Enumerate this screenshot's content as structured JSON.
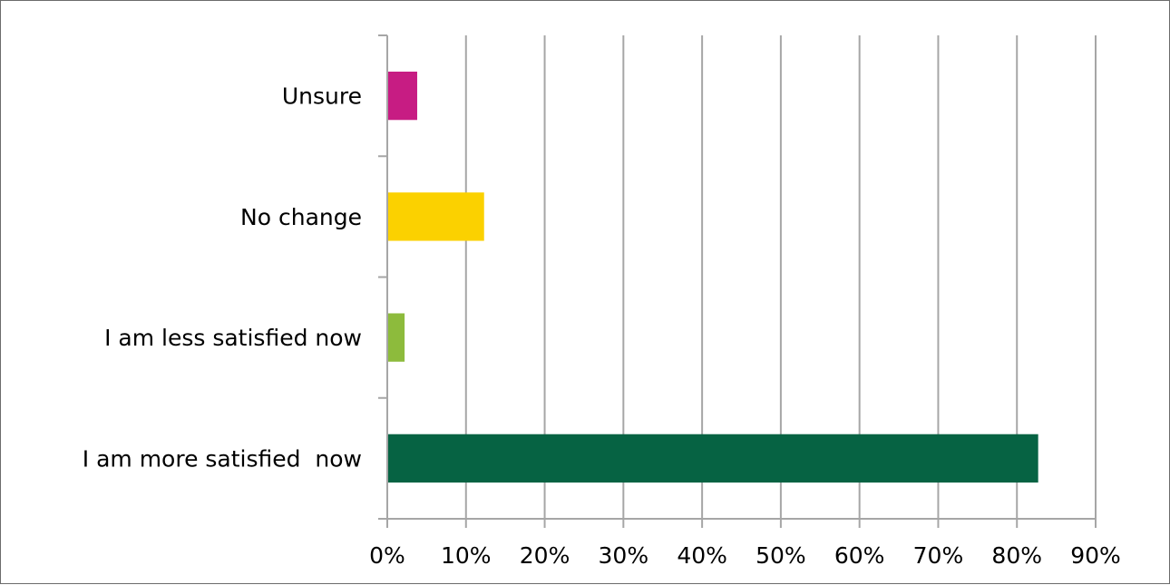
{
  "chart_data": {
    "type": "bar",
    "orientation": "horizontal",
    "categories": [
      "Unsure",
      "No change",
      "I am less satisfied now",
      "I am more satisfied  now"
    ],
    "values": [
      3.8,
      12.3,
      2.2,
      82.7
    ],
    "colors": [
      "#c71c83",
      "#fbd100",
      "#8dbb3c",
      "#066343"
    ],
    "xlim": [
      0,
      90
    ],
    "x_ticks": [
      0,
      10,
      20,
      30,
      40,
      50,
      60,
      70,
      80,
      90
    ],
    "x_tick_labels": [
      "0%",
      "10%",
      "20%",
      "30%",
      "40%",
      "50%",
      "60%",
      "70%",
      "80%",
      "90%"
    ],
    "grid": "vertical",
    "gridline_color": "#a6a6a6",
    "title": "",
    "xlabel": "",
    "ylabel": "",
    "legend": "none"
  }
}
